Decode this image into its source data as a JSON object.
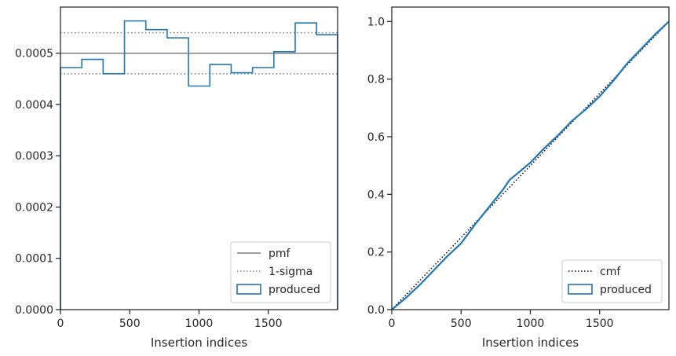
{
  "chart_data": [
    {
      "type": "step-histogram",
      "xlabel": "Insertion indices",
      "ylabel": "",
      "xlim": [
        0,
        2000
      ],
      "ylim": [
        0,
        0.00059
      ],
      "xticks": [
        0,
        500,
        1000,
        1500
      ],
      "xtick_labels": [
        "0",
        "500",
        "1000",
        "1500"
      ],
      "yticks": [
        0,
        0.0001,
        0.0002,
        0.0003,
        0.0004,
        0.0005
      ],
      "ytick_labels": [
        "0.0000",
        "0.0001",
        "0.0002",
        "0.0003",
        "0.0004",
        "0.0005"
      ],
      "grid": false,
      "legend_position": "lower-right",
      "pmf": 0.0005,
      "sigma_band": [
        0.00046,
        0.00054
      ],
      "bin_edges": [
        0,
        154,
        308,
        462,
        616,
        770,
        924,
        1078,
        1232,
        1386,
        1540,
        1694,
        1848,
        2000
      ],
      "values": [
        0.000472,
        0.000488,
        0.00046,
        0.000563,
        0.000546,
        0.00053,
        0.000436,
        0.000478,
        0.000462,
        0.000472,
        0.000503,
        0.000559,
        0.000536
      ],
      "legend": [
        {
          "label": "pmf",
          "style": "solid",
          "color": "#808080"
        },
        {
          "label": "1-sigma",
          "style": "dotted",
          "color": "#808080"
        },
        {
          "label": "produced",
          "style": "patch",
          "color": "#1f77b4"
        }
      ]
    },
    {
      "type": "line",
      "xlabel": "Insertion indices",
      "ylabel": "",
      "xlim": [
        0,
        2000
      ],
      "ylim": [
        0,
        1.05
      ],
      "xticks": [
        0,
        500,
        1000,
        1500
      ],
      "xtick_labels": [
        "0",
        "500",
        "1000",
        "1500"
      ],
      "yticks": [
        0,
        0.2,
        0.4,
        0.6,
        0.8,
        1.0
      ],
      "ytick_labels": [
        "0.0",
        "0.2",
        "0.4",
        "0.6",
        "0.8",
        "1.0"
      ],
      "grid": false,
      "legend_position": "lower-right",
      "cmf": {
        "x": [
          0,
          2000
        ],
        "y": [
          0,
          1.0
        ]
      },
      "produced": {
        "x": [
          0,
          100,
          200,
          300,
          400,
          500,
          600,
          700,
          800,
          850,
          900,
          1000,
          1100,
          1200,
          1300,
          1400,
          1500,
          1600,
          1700,
          1800,
          1900,
          2000
        ],
        "y": [
          0,
          0.04,
          0.085,
          0.135,
          0.185,
          0.23,
          0.295,
          0.355,
          0.415,
          0.45,
          0.47,
          0.51,
          0.56,
          0.605,
          0.655,
          0.695,
          0.74,
          0.795,
          0.855,
          0.905,
          0.955,
          1.0
        ]
      },
      "legend": [
        {
          "label": "cmf",
          "style": "dotted",
          "color": "#000000"
        },
        {
          "label": "produced",
          "style": "patch",
          "color": "#1f77b4"
        }
      ]
    }
  ]
}
